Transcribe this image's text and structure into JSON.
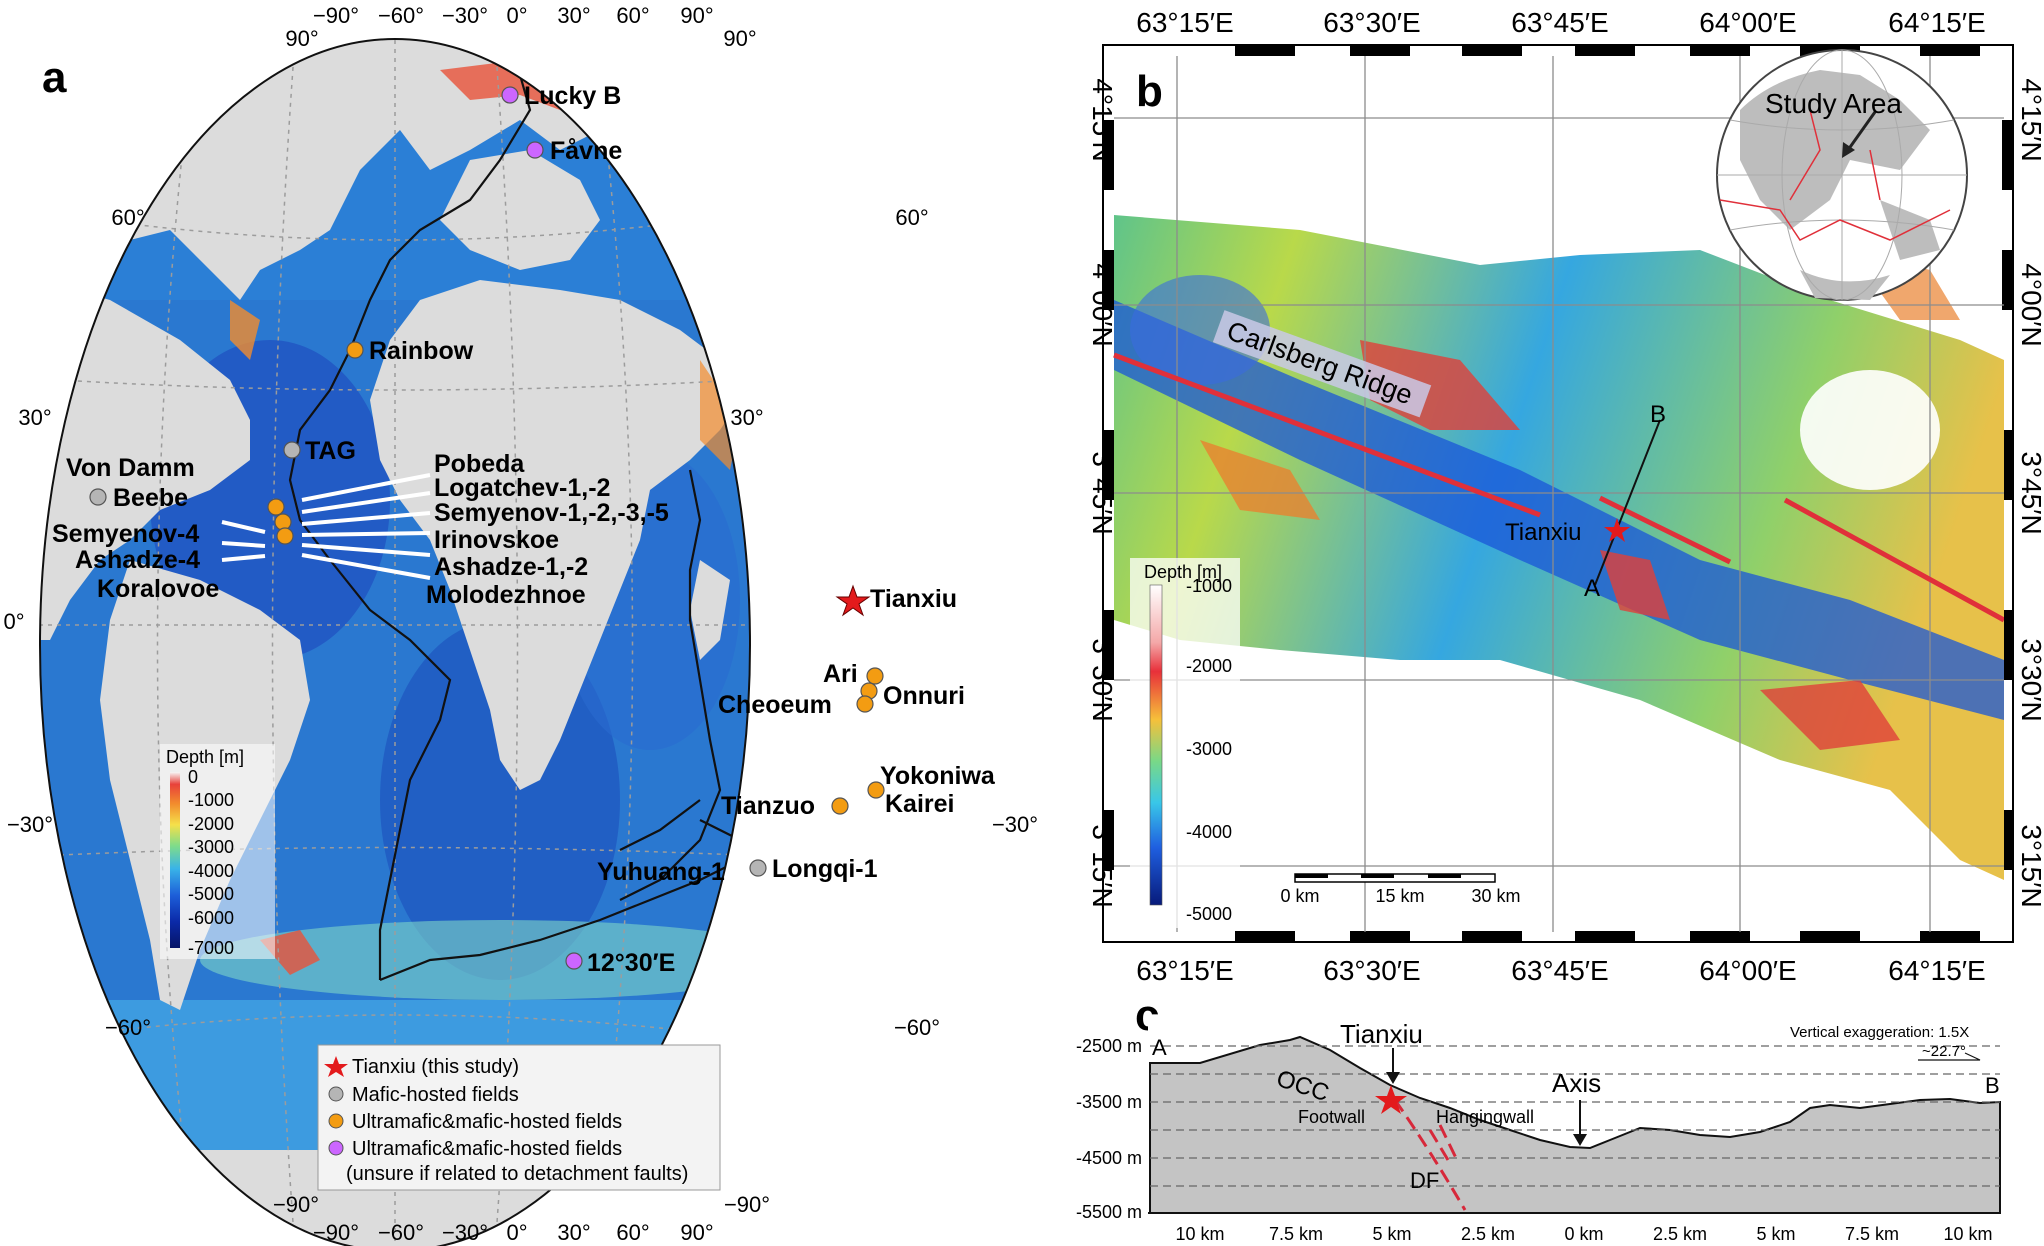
{
  "panel_a": {
    "letter": "a",
    "lon_ticks": [
      "−90°",
      "−60°",
      "−30°",
      "0°",
      "30°",
      "60°",
      "90°"
    ],
    "corner_top_left": "90°",
    "corner_top_right": "90°",
    "corner_bottom_left": "−90°",
    "corner_bottom_right": "−90°",
    "lat_left": [
      "60°",
      "30°",
      "0°",
      "−30°",
      "−60°"
    ],
    "lat_right": [
      "60°",
      "30°",
      "−30°",
      "−60°"
    ],
    "depth_legend": {
      "title": "Depth [m]",
      "ticks": [
        "0",
        "-1000",
        "-2000",
        "-3000",
        "-4000",
        "-5000",
        "-6000",
        "-7000"
      ]
    },
    "fields": {
      "lucky_b": "Lucky B",
      "favne": "Fåvne",
      "rainbow": "Rainbow",
      "tag": "TAG",
      "von_damm": "Von Damm",
      "beebe": "Beebe",
      "semyenov4": "Semyenov-4",
      "ashadze4": "Ashadze-4",
      "koralovoe": "Koralovoe",
      "pobeda": "Pobeda",
      "logatchev": "Logatchev-1,-2",
      "semyenov": "Semyenov-1,-2,-3,-5",
      "irinovskoe": "Irinovskoe",
      "ashadze": "Ashadze-1,-2",
      "molodezhnoe": "Molodezhnoe",
      "tianxiu": "Tianxiu",
      "ari": "Ari",
      "onnuri": "Onnuri",
      "cheoeum": "Cheoeum",
      "yokoniwa": "Yokoniwa",
      "kairei": "Kairei",
      "tianzuo": "Tianzuo",
      "yuhuang": "Yuhuang-1",
      "longqi": "Longqi-1",
      "e1230": "12°30′E"
    },
    "legend": [
      {
        "label": "Tianxiu (this study)",
        "symbol": "star",
        "color": "#e31a1c"
      },
      {
        "label": "Mafic-hosted fields",
        "symbol": "circle",
        "color": "#b5b5b5"
      },
      {
        "label": "Ultramafic&mafic-hosted fields",
        "symbol": "circle",
        "color": "#f39c12"
      },
      {
        "label": "Ultramafic&mafic-hosted fields",
        "symbol": "circle",
        "color": "#cc66ff"
      },
      {
        "label": "(unsure if related to detachment faults)"
      }
    ]
  },
  "panel_b": {
    "letter": "b",
    "lon_ticks": [
      "63°15′E",
      "63°30′E",
      "63°45′E",
      "64°00′E",
      "64°15′E"
    ],
    "lat_ticks": [
      "4°15′N",
      "4°00′N",
      "3°45′N",
      "3°30′N",
      "3°15′N"
    ],
    "study_area": "Study Area",
    "ridge_label": "Carlsberg Ridge",
    "tianxiu": "Tianxiu",
    "point_a": "A",
    "point_b": "B",
    "depth_legend": {
      "title": "Depth [m]",
      "ticks": [
        "-1000",
        "-2000",
        "-3000",
        "-4000",
        "-5000"
      ]
    },
    "scale": [
      "0 km",
      "15 km",
      "30 km"
    ]
  },
  "panel_c": {
    "letter": "c",
    "y_ticks": [
      "-2500 m",
      "-3500 m",
      "-4500 m",
      "-5500 m"
    ],
    "x_ticks": [
      "10 km",
      "7.5 km",
      "5 km",
      "2.5 km",
      "0 km",
      "2.5 km",
      "5 km",
      "7.5 km",
      "10 km"
    ],
    "vert_exag": "Vertical exaggeration: 1.5X",
    "angle": "~22.7°",
    "tianxiu": "Tianxiu",
    "axis": "Axis",
    "occ": "OCC",
    "footwall": "Footwall",
    "hangingwall": "Hangingwall",
    "df": "DF",
    "point_a": "A",
    "point_b": "B"
  },
  "colors": {
    "star": "#e31a1c",
    "mafic": "#b5b5b5",
    "ultramafic": "#f39c12",
    "unsure": "#cc66ff",
    "ridge": "#e0303a"
  }
}
